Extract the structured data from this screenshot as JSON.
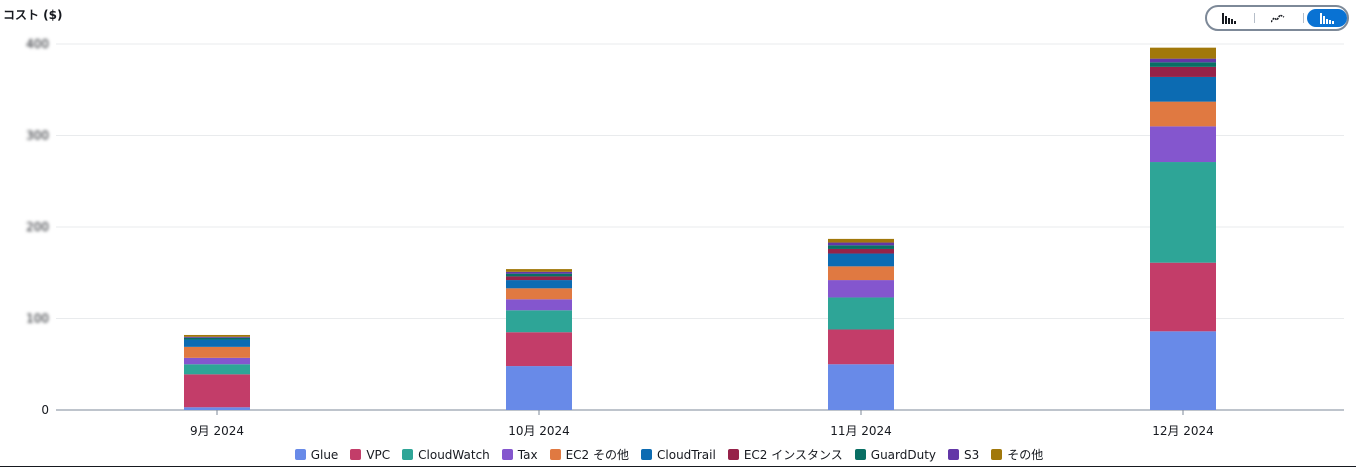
{
  "chart_data": {
    "type": "bar",
    "stacked": true,
    "ylabel": "コスト ($)",
    "yticks": [
      "0",
      "100",
      "200",
      "300",
      "400"
    ],
    "ylim": [
      0,
      400
    ],
    "grid": true,
    "legend_position": "bottom",
    "categories": [
      "9月 2024",
      "10月 2024",
      "11月 2024",
      "12月 2024"
    ],
    "series": [
      {
        "name": "Glue",
        "color": "#688ae8",
        "values": [
          3,
          48,
          50,
          86
        ]
      },
      {
        "name": "VPC",
        "color": "#c33d69",
        "values": [
          36,
          37,
          38,
          75
        ]
      },
      {
        "name": "CloudWatch",
        "color": "#2ea597",
        "values": [
          11,
          24,
          35,
          110
        ]
      },
      {
        "name": "Tax",
        "color": "#8456ce",
        "values": [
          7,
          12,
          19,
          39
        ]
      },
      {
        "name": "EC2 その他",
        "color": "#e07941",
        "values": [
          12,
          12,
          15,
          27
        ]
      },
      {
        "name": "CloudTrail",
        "color": "#0c6bb2",
        "values": [
          8,
          9,
          14,
          27
        ]
      },
      {
        "name": "EC2 インスタンス",
        "color": "#962249",
        "values": [
          0,
          4,
          5,
          11
        ]
      },
      {
        "name": "GuardDuty",
        "color": "#096f64",
        "values": [
          2,
          3,
          4,
          5
        ]
      },
      {
        "name": "S3",
        "color": "#6237a7",
        "values": [
          1,
          2,
          3,
          4
        ]
      },
      {
        "name": "その他",
        "color": "#a1780b",
        "values": [
          2,
          3,
          4,
          12
        ]
      }
    ]
  },
  "view_toggle": {
    "options": [
      {
        "icon": "grouped-bar-chart-icon",
        "active": false
      },
      {
        "icon": "line-chart-icon",
        "active": false
      },
      {
        "icon": "stacked-bar-chart-icon",
        "active": true
      }
    ]
  }
}
